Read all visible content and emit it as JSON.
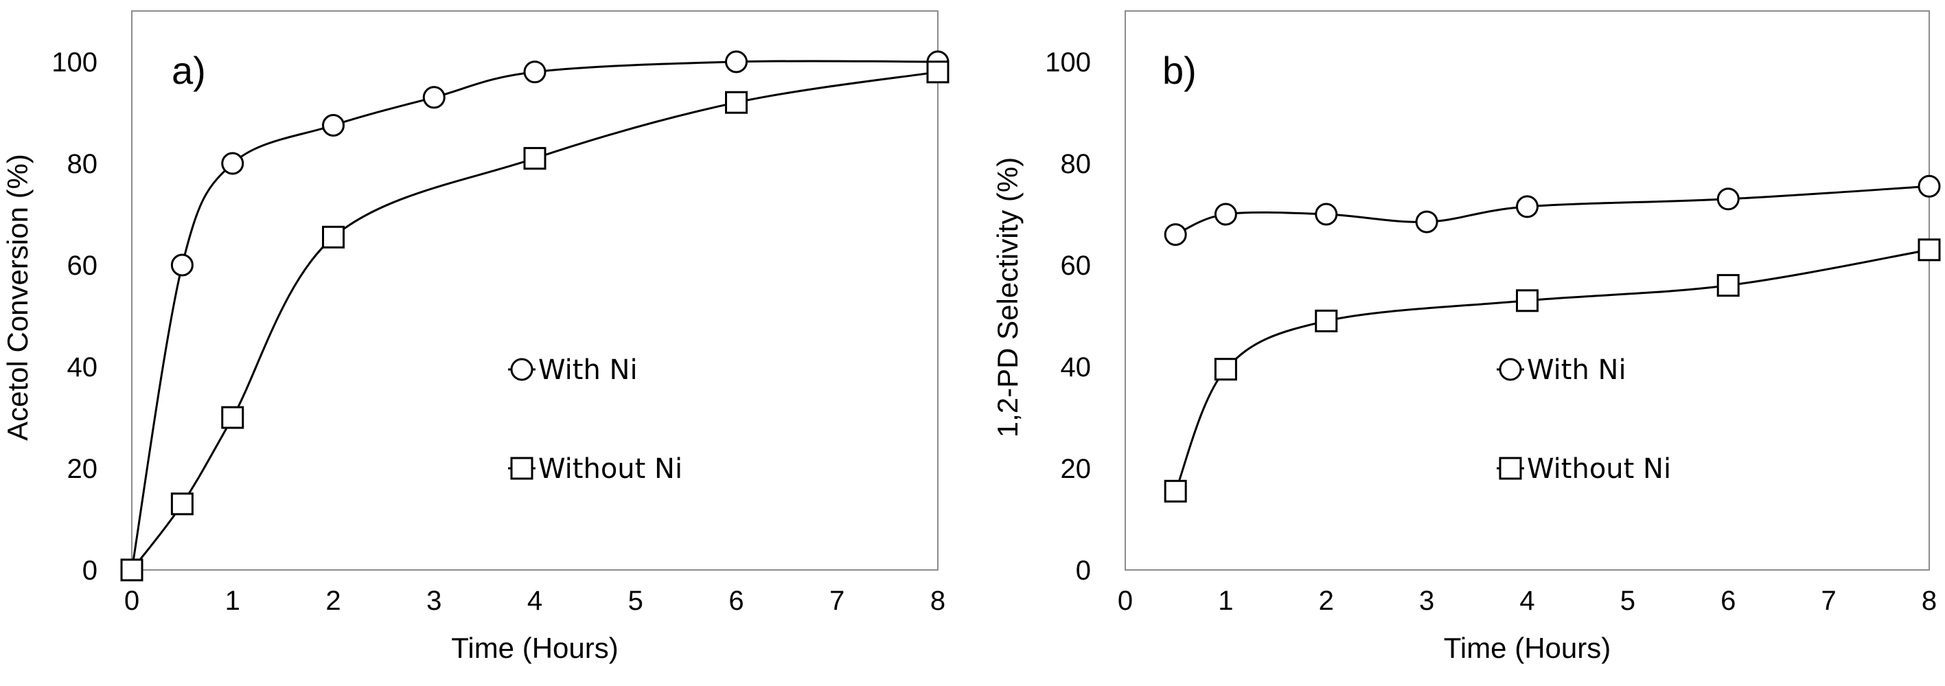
{
  "chart_data": [
    {
      "type": "line",
      "panel_label": "a)",
      "xlabel": "Time (Hours)",
      "ylabel": "Acetol Conversion (%)",
      "xlim": [
        0,
        8
      ],
      "ylim": [
        0,
        100
      ],
      "xticks": [
        0,
        1,
        2,
        3,
        4,
        5,
        6,
        7,
        8
      ],
      "yticks": [
        0,
        20,
        40,
        60,
        80,
        100
      ],
      "grid": false,
      "legend_position": "center-right",
      "series": [
        {
          "name": "With Ni",
          "marker": "circle",
          "x": [
            0,
            0.5,
            1,
            2,
            3,
            4,
            6,
            8
          ],
          "y": [
            0,
            60,
            80,
            87.5,
            93,
            98,
            100,
            100
          ]
        },
        {
          "name": "Without Ni",
          "marker": "square",
          "x": [
            0,
            0.5,
            1,
            2,
            4,
            6,
            8
          ],
          "y": [
            0,
            13,
            30,
            65.5,
            81,
            92,
            98
          ]
        }
      ]
    },
    {
      "type": "line",
      "panel_label": "b)",
      "xlabel": "Time (Hours)",
      "ylabel": "1,2-PD Selectivity (%)",
      "xlim": [
        0,
        8
      ],
      "ylim": [
        0,
        110
      ],
      "xticks": [
        0,
        1,
        2,
        3,
        4,
        5,
        6,
        7,
        8
      ],
      "yticks": [
        0,
        20,
        40,
        60,
        80,
        100
      ],
      "grid": false,
      "legend_position": "center-right",
      "series": [
        {
          "name": "With Ni",
          "marker": "circle",
          "x": [
            0.5,
            1,
            2,
            3,
            4,
            6,
            8
          ],
          "y": [
            66,
            70,
            70,
            68.5,
            71.5,
            73,
            75.5
          ]
        },
        {
          "name": "Without Ni",
          "marker": "square",
          "x": [
            0.5,
            1,
            2,
            4,
            6,
            8
          ],
          "y": [
            15.5,
            39.5,
            49,
            53,
            56,
            63
          ]
        }
      ]
    }
  ]
}
